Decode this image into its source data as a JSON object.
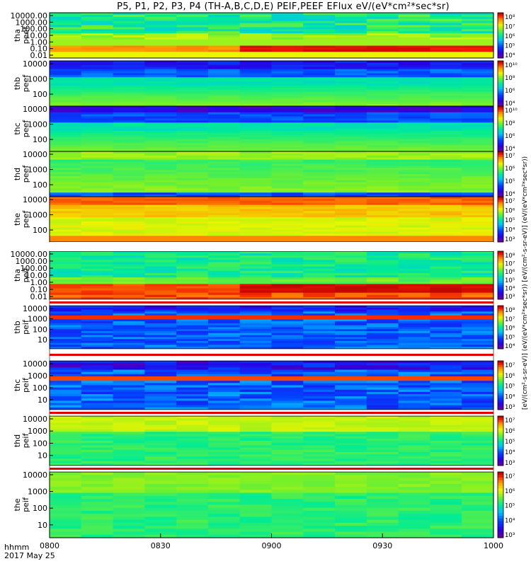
{
  "figure": {
    "title": "P5, P1, P2, P3, P4 (TH-A,B,C,D,E) PEIF,PEEF EFlux eV/(eV*cm²*sec*sr)",
    "time_axis_label": "hhmm",
    "date_label": "2017 May 25",
    "colorbar_units_label": "[eV/(cm²-s-sr-eV)]   (eV/(eV*cm²*sec*sr))   [eV/(cm²-s-sr-eV)]   (eV/(eV*cm²*sec*sr))"
  },
  "chart_data": {
    "type": "heatmap",
    "x_ticks": [
      "0800",
      "0830",
      "0900",
      "0930",
      "1000"
    ],
    "x_range": [
      "0800",
      "1000"
    ],
    "panels": [
      {
        "id": "tha_peef",
        "ylabel": [
          "tha",
          "peef"
        ],
        "yticks": [
          "10000.00",
          "1000.00",
          "100.00",
          "10.00",
          "1.00",
          "0.10",
          "0.01"
        ],
        "colorbar_ticks": [
          "10⁸",
          "10⁷",
          "10⁶",
          "10⁵",
          "10⁴"
        ]
      },
      {
        "id": "thb_peef",
        "ylabel": [
          "thb",
          "peef"
        ],
        "yticks": [
          "10000",
          "1000",
          "100"
        ],
        "colorbar_ticks": [
          "10¹⁰",
          "10⁸",
          "10⁶",
          "10⁴"
        ]
      },
      {
        "id": "thc_peef",
        "ylabel": [
          "thc",
          "peef"
        ],
        "yticks": [
          "10000",
          "1000",
          "100"
        ],
        "colorbar_ticks": [
          "10¹⁰",
          "10⁸",
          "10⁶",
          "10⁴"
        ]
      },
      {
        "id": "thd_peef",
        "ylabel": [
          "thd",
          "peef"
        ],
        "yticks": [
          "10000",
          "1000",
          "100"
        ],
        "colorbar_ticks": [
          "10⁷",
          "10⁶",
          "10⁵",
          "10⁴"
        ]
      },
      {
        "id": "the_peef",
        "ylabel": [
          "the",
          "peef"
        ],
        "yticks": [
          "10000",
          "1000",
          "100"
        ],
        "colorbar_ticks": [
          "10⁷",
          "10⁶",
          "10⁵",
          "10⁴",
          "10³"
        ]
      },
      {
        "id": "tha_peif",
        "ylabel": [
          "tha",
          "peif"
        ],
        "yticks": [
          "10000.00",
          "1000.00",
          "100.00",
          "10.00",
          "1.00",
          "0.10",
          "0.01"
        ],
        "colorbar_ticks": [
          "10⁸",
          "10⁷",
          "10⁶",
          "10⁵",
          "10⁴",
          "10³"
        ]
      },
      {
        "id": "thb_peif",
        "ylabel": [
          "thb",
          "peif"
        ],
        "yticks": [
          "10000",
          "1000",
          "100",
          "10"
        ],
        "colorbar_ticks": [
          "10⁸",
          "10⁷",
          "10⁶",
          "10⁵",
          "10⁴"
        ]
      },
      {
        "id": "thc_peif",
        "ylabel": [
          "thc",
          "peif"
        ],
        "yticks": [
          "10000",
          "1000",
          "100",
          "10"
        ],
        "colorbar_ticks": [
          "10⁷",
          "10⁶",
          "10⁵",
          "10⁴",
          "10³"
        ]
      },
      {
        "id": "thd_peif",
        "ylabel": [
          "thd",
          "peif"
        ],
        "yticks": [
          "10000",
          "1000",
          "100",
          "10"
        ],
        "colorbar_ticks": [
          "10⁷",
          "10⁶",
          "10⁵",
          "10⁴",
          "10³"
        ]
      },
      {
        "id": "the_peif",
        "ylabel": [
          "the",
          "peif"
        ],
        "yticks": [
          "10000",
          "1000",
          "100",
          "10"
        ],
        "colorbar_ticks": [
          "10⁷",
          "10⁶",
          "10⁵",
          "10⁴",
          "10³"
        ]
      }
    ]
  }
}
